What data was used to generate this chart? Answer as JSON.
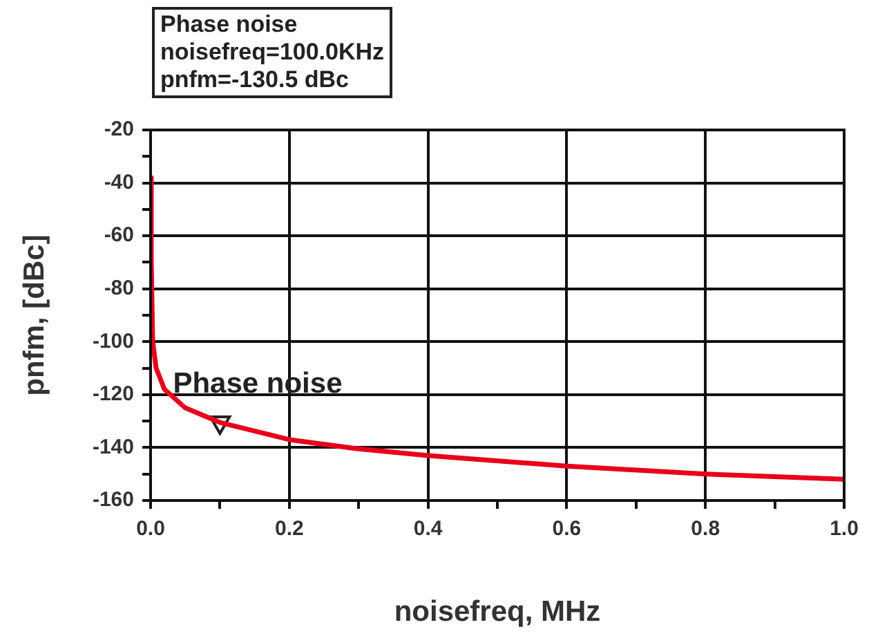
{
  "chart_data": {
    "type": "line",
    "xlabel": "noisefreq, MHz",
    "ylabel": "pnfm, [dBc]",
    "x": [
      0,
      0.001,
      0.003,
      0.008,
      0.02,
      0.05,
      0.1,
      0.2,
      0.3,
      0.4,
      0.6,
      0.8,
      1.0
    ],
    "series": [
      {
        "color": "#e8001c",
        "values": [
          -38,
          -70,
          -100,
          -110,
          -118,
          -125,
          -130.5,
          -137,
          -140.5,
          -143,
          -147,
          -150,
          -152
        ]
      },
      {
        "type": "scatter",
        "x": [
          0.1
        ],
        "values": [
          -130.5
        ],
        "color": "#222222",
        "marker": "triangle"
      }
    ],
    "xlim": [
      0,
      1
    ],
    "ylim": [
      -160,
      -20
    ],
    "xticks": [
      {
        "value": 0,
        "label": "0.0"
      },
      {
        "value": 0.1,
        "label": null
      },
      {
        "value": 0.2,
        "label": "0.2"
      },
      {
        "value": 0.3,
        "label": null
      },
      {
        "value": 0.4,
        "label": "0.4"
      },
      {
        "value": 0.5,
        "label": null
      },
      {
        "value": 0.6,
        "label": "0.6"
      },
      {
        "value": 0.7,
        "label": null
      },
      {
        "value": 0.8,
        "label": "0.8"
      },
      {
        "value": 0.9,
        "label": null
      },
      {
        "value": 1,
        "label": "1.0"
      }
    ],
    "yticks": [
      -160,
      {
        "value": -150,
        "label": null
      },
      -140,
      {
        "value": -130,
        "label": null
      },
      -120,
      {
        "value": -110,
        "label": null
      },
      -100,
      {
        "value": -90,
        "label": null
      },
      -80,
      {
        "value": -70,
        "label": null
      },
      -60,
      {
        "value": -50,
        "label": null
      },
      -40,
      {
        "value": -30,
        "label": null
      },
      -20
    ],
    "grid": true,
    "marker": "none",
    "line_style": "solid",
    "legend": false,
    "annotations": [
      "Phase noise\nnoisefreq=100.0KHz\npnfm=-130.5 dBc",
      {
        "text": "Phase noise",
        "x": 0.1,
        "y": -130.5
      }
    ]
  }
}
